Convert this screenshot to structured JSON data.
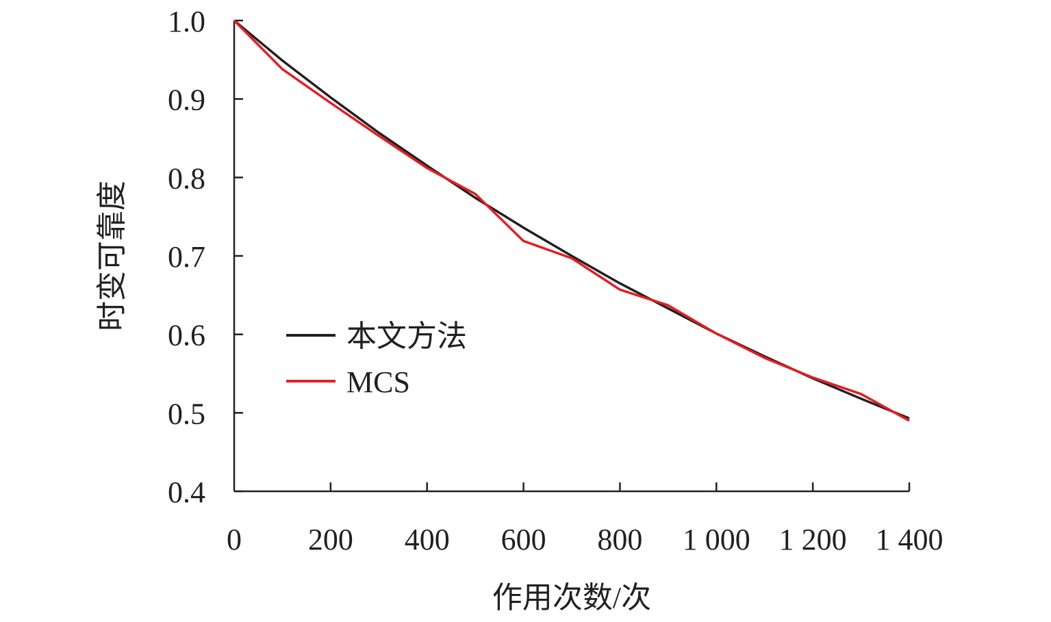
{
  "chart_data": {
    "type": "line",
    "xlabel": "作用次数/次",
    "ylabel": "时变可靠度",
    "xlim": [
      0,
      1400
    ],
    "ylim": [
      0.4,
      1.0
    ],
    "x_ticks": [
      0,
      200,
      400,
      600,
      800,
      1000,
      1200,
      1400
    ],
    "x_tick_labels": [
      "0",
      "200",
      "400",
      "600",
      "800",
      "1 000",
      "1 200",
      "1 400"
    ],
    "y_ticks": [
      0.4,
      0.5,
      0.6,
      0.7,
      0.8,
      0.9,
      1.0
    ],
    "y_tick_labels": [
      "0.4",
      "0.5",
      "0.6",
      "0.7",
      "0.8",
      "0.9",
      "1.0"
    ],
    "grid": false,
    "legend_position": "center-left",
    "series": [
      {
        "name": "本文方法",
        "color": "#231f20",
        "x": [
          0,
          100,
          200,
          300,
          400,
          500,
          600,
          700,
          800,
          900,
          1000,
          1100,
          1200,
          1300,
          1400
        ],
        "y": [
          1.0,
          0.949,
          0.902,
          0.857,
          0.815,
          0.774,
          0.736,
          0.7,
          0.665,
          0.633,
          0.601,
          0.572,
          0.544,
          0.518,
          0.493
        ]
      },
      {
        "name": "MCS",
        "color": "#e31e24",
        "x": [
          0,
          100,
          200,
          300,
          400,
          500,
          600,
          700,
          800,
          900,
          1000,
          1100,
          1200,
          1300,
          1400
        ],
        "y": [
          1.0,
          0.938,
          0.895,
          0.853,
          0.812,
          0.779,
          0.719,
          0.697,
          0.657,
          0.637,
          0.601,
          0.57,
          0.545,
          0.524,
          0.49
        ]
      }
    ]
  }
}
